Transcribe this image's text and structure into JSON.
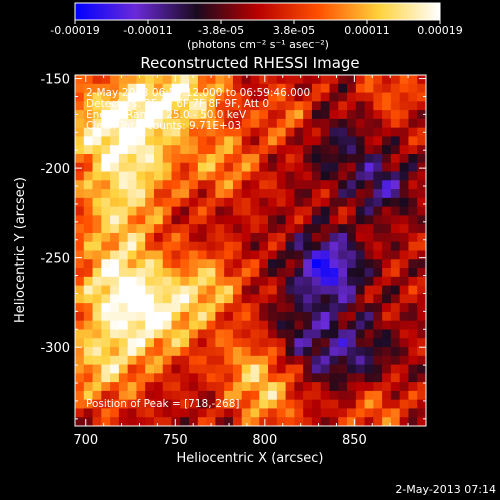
{
  "colorbar": {
    "ticks": [
      "-0.00019",
      "-0.00011",
      "-3.8e-05",
      "3.8e-05",
      "0.00011",
      "0.00019"
    ],
    "unit": "(photons cm⁻² s⁻¹ asec⁻²)",
    "stops": [
      "#0000ff",
      "#6a2ad8",
      "#1a0a1e",
      "#b80000",
      "#ff5000",
      "#ffd23c",
      "#ffffff"
    ]
  },
  "chart_data": {
    "type": "heatmap",
    "title": "Reconstructed RHESSI Image",
    "xlabel": "Heliocentric X (arcsec)",
    "ylabel": "Heliocentric Y (arcsec)",
    "xlim": [
      694,
      890
    ],
    "ylim": [
      -344,
      -148
    ],
    "xticks": [
      700,
      750,
      800,
      850
    ],
    "yticks": [
      -150,
      -200,
      -250,
      -300
    ],
    "annotations": [
      "2-May-2013 06:54:12.000 to 06:59:46.000",
      "Detectors: 3F 5F 6F 7F 8F 9F, Att 0",
      "Energy Range: 25.0 - 50.0 keV",
      "Clean     Total counts: 9.71E+03",
      "Position of Peak = [718,-268]"
    ],
    "peak": [
      718,
      -268
    ],
    "value_range": [
      -0.00019,
      0.00019
    ]
  },
  "footer": {
    "timestamp": "2-May-2013 07:14"
  }
}
